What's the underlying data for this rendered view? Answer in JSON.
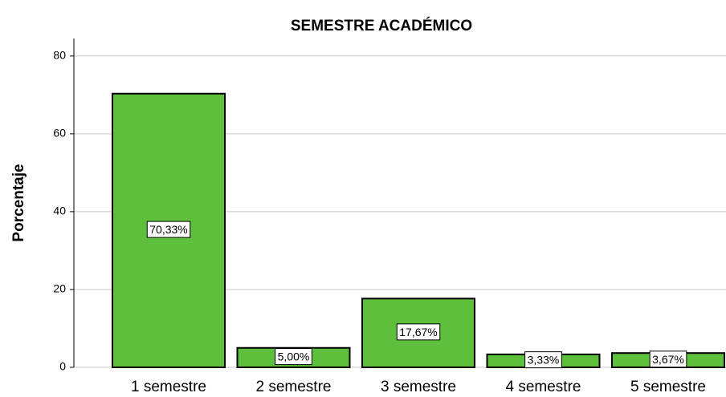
{
  "chart_data": {
    "type": "bar",
    "title": "SEMESTRE ACADÉMICO",
    "ylabel": "Porcentaje",
    "categories": [
      "1 semestre",
      "2 semestre",
      "3 semestre",
      "4 semestre",
      "5 semestre"
    ],
    "values": [
      70.33,
      5.0,
      17.67,
      3.33,
      3.67
    ],
    "value_labels": [
      "70,33%",
      "5,00%",
      "17,67%",
      "3,33%",
      "3,67%"
    ],
    "color": "#5dbf3b",
    "ylim": [
      0,
      84.5
    ],
    "yticks": [
      0,
      20,
      40,
      60,
      80
    ],
    "grid": true
  }
}
